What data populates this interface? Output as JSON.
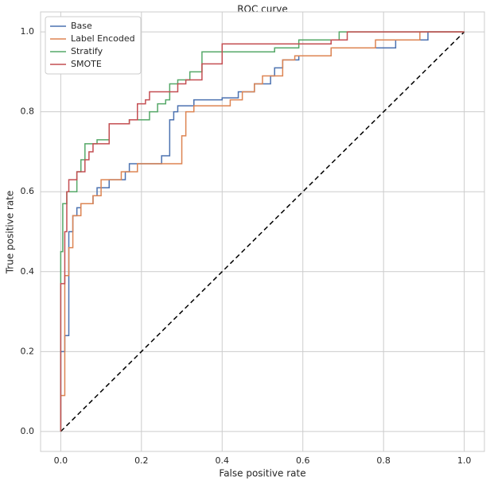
{
  "chart_data": {
    "type": "line",
    "title": "ROC curve",
    "x_label": "False positive rate",
    "y_label": "True positive rate",
    "xlim": [
      -0.05,
      1.05
    ],
    "ylim": [
      -0.05,
      1.05
    ],
    "xticks": [
      {
        "value": 0,
        "label": "0.0"
      },
      {
        "value": 0.2,
        "label": "0.2"
      },
      {
        "value": 0.4,
        "label": "0.4"
      },
      {
        "value": 0.6,
        "label": "0.6"
      },
      {
        "value": 0.8,
        "label": "0.8"
      },
      {
        "value": 1,
        "label": "1.0"
      }
    ],
    "yticks": [
      {
        "value": 0,
        "label": "0.0"
      },
      {
        "value": 0.2,
        "label": "0.2"
      },
      {
        "value": 0.4,
        "label": "0.4"
      },
      {
        "value": 0.6,
        "label": "0.6"
      },
      {
        "value": 0.8,
        "label": "0.8"
      },
      {
        "value": 1,
        "label": "1.0"
      }
    ],
    "grid": true,
    "legend": "upper left",
    "series": [
      {
        "name": "Base",
        "color": "#4c72b0",
        "x": [
          0,
          0,
          0.01,
          0.01,
          0.02,
          0.02,
          0.03,
          0.03,
          0.04,
          0.04,
          0.05,
          0.05,
          0.08,
          0.08,
          0.09,
          0.09,
          0.12,
          0.12,
          0.16,
          0.16,
          0.17,
          0.17,
          0.25,
          0.25,
          0.27,
          0.27,
          0.28,
          0.28,
          0.29,
          0.29,
          0.33,
          0.33,
          0.4,
          0.4,
          0.44,
          0.44,
          0.48,
          0.48,
          0.52,
          0.52,
          0.53,
          0.53,
          0.55,
          0.55,
          0.59,
          0.59,
          0.67,
          0.67,
          0.83,
          0.83,
          0.91,
          0.91,
          1
        ],
        "values": [
          0,
          0.2,
          0.2,
          0.24,
          0.24,
          0.5,
          0.5,
          0.54,
          0.54,
          0.56,
          0.56,
          0.57,
          0.57,
          0.59,
          0.59,
          0.61,
          0.61,
          0.63,
          0.63,
          0.65,
          0.65,
          0.67,
          0.67,
          0.69,
          0.69,
          0.78,
          0.78,
          0.8,
          0.8,
          0.815,
          0.815,
          0.83,
          0.83,
          0.835,
          0.835,
          0.85,
          0.85,
          0.87,
          0.87,
          0.89,
          0.89,
          0.91,
          0.91,
          0.93,
          0.93,
          0.94,
          0.94,
          0.96,
          0.96,
          0.98,
          0.98,
          1,
          1
        ]
      },
      {
        "name": "Label Encoded",
        "color": "#dd8452",
        "x": [
          0,
          0,
          0.01,
          0.01,
          0.02,
          0.02,
          0.03,
          0.03,
          0.05,
          0.05,
          0.08,
          0.08,
          0.1,
          0.1,
          0.15,
          0.15,
          0.19,
          0.19,
          0.3,
          0.3,
          0.31,
          0.31,
          0.33,
          0.33,
          0.42,
          0.42,
          0.45,
          0.45,
          0.48,
          0.48,
          0.5,
          0.5,
          0.55,
          0.55,
          0.58,
          0.58,
          0.67,
          0.67,
          0.78,
          0.78,
          0.89,
          0.89,
          1
        ],
        "values": [
          0,
          0.09,
          0.09,
          0.39,
          0.39,
          0.46,
          0.46,
          0.54,
          0.54,
          0.57,
          0.57,
          0.59,
          0.59,
          0.63,
          0.63,
          0.65,
          0.65,
          0.67,
          0.67,
          0.74,
          0.74,
          0.8,
          0.8,
          0.815,
          0.815,
          0.83,
          0.83,
          0.85,
          0.85,
          0.87,
          0.87,
          0.89,
          0.89,
          0.93,
          0.93,
          0.94,
          0.94,
          0.96,
          0.96,
          0.98,
          0.98,
          1,
          1
        ]
      },
      {
        "name": "Stratify",
        "color": "#55a868",
        "x": [
          0,
          0,
          0.005,
          0.005,
          0.015,
          0.015,
          0.04,
          0.04,
          0.05,
          0.05,
          0.06,
          0.06,
          0.09,
          0.09,
          0.12,
          0.12,
          0.17,
          0.17,
          0.22,
          0.22,
          0.24,
          0.24,
          0.26,
          0.26,
          0.27,
          0.27,
          0.29,
          0.29,
          0.32,
          0.32,
          0.35,
          0.35,
          0.53,
          0.53,
          0.59,
          0.59,
          0.69,
          0.69,
          1
        ],
        "values": [
          0,
          0.45,
          0.45,
          0.57,
          0.57,
          0.6,
          0.6,
          0.65,
          0.65,
          0.68,
          0.68,
          0.72,
          0.72,
          0.73,
          0.73,
          0.77,
          0.77,
          0.78,
          0.78,
          0.8,
          0.8,
          0.82,
          0.82,
          0.83,
          0.83,
          0.87,
          0.87,
          0.88,
          0.88,
          0.9,
          0.9,
          0.95,
          0.95,
          0.96,
          0.96,
          0.98,
          0.98,
          1,
          1
        ]
      },
      {
        "name": "SMOTE",
        "color": "#c44e52",
        "x": [
          0,
          0,
          0.01,
          0.01,
          0.015,
          0.015,
          0.02,
          0.02,
          0.04,
          0.04,
          0.06,
          0.06,
          0.07,
          0.07,
          0.08,
          0.08,
          0.12,
          0.12,
          0.17,
          0.17,
          0.19,
          0.19,
          0.21,
          0.21,
          0.22,
          0.22,
          0.29,
          0.29,
          0.31,
          0.31,
          0.35,
          0.35,
          0.4,
          0.4,
          0.67,
          0.67,
          0.71,
          0.71,
          1
        ],
        "values": [
          0,
          0.37,
          0.37,
          0.5,
          0.5,
          0.6,
          0.6,
          0.63,
          0.63,
          0.65,
          0.65,
          0.68,
          0.68,
          0.7,
          0.7,
          0.72,
          0.72,
          0.77,
          0.77,
          0.78,
          0.78,
          0.82,
          0.82,
          0.83,
          0.83,
          0.85,
          0.85,
          0.87,
          0.87,
          0.88,
          0.88,
          0.92,
          0.92,
          0.97,
          0.97,
          0.98,
          0.98,
          1,
          1
        ]
      }
    ],
    "reference_line": {
      "color": "#000000",
      "dashed": true,
      "x": [
        0,
        1
      ],
      "values": [
        0,
        1
      ]
    }
  }
}
